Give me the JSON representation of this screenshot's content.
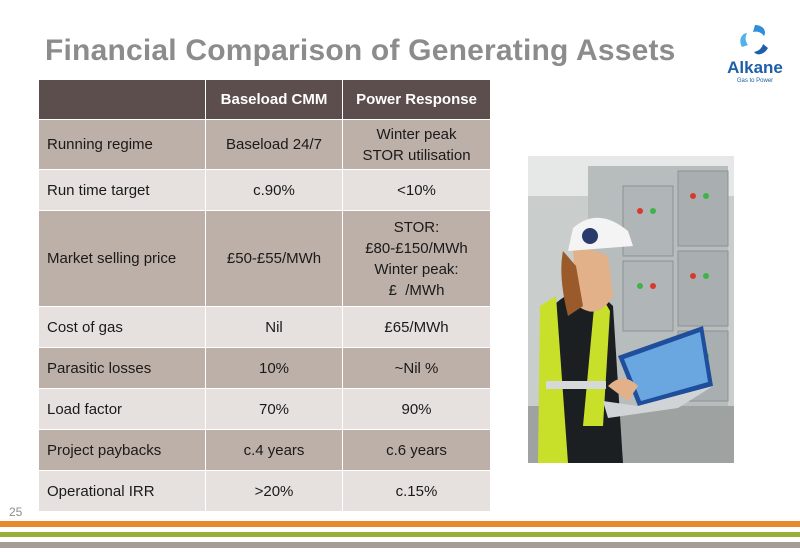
{
  "slide": {
    "title": "Financial Comparison of Generating Assets",
    "page_number": "25"
  },
  "logo": {
    "name": "Alkane",
    "tagline": "Gas to Power"
  },
  "table": {
    "headers": [
      "",
      "Baseload CMM",
      "Power Response"
    ],
    "rows": [
      {
        "label": "Running regime",
        "baseload": [
          "Baseload 24/7"
        ],
        "power": [
          "Winter peak",
          "STOR utilisation"
        ]
      },
      {
        "label": "Run time target",
        "baseload": [
          "c.90%"
        ],
        "power": [
          "<10%"
        ]
      },
      {
        "label": "Market selling price",
        "baseload": [
          "£50-£55/MWh"
        ],
        "power": [
          "STOR:",
          "£80-£150/MWh",
          "Winter peak:",
          "£  /MWh"
        ]
      },
      {
        "label": "Cost of gas",
        "baseload": [
          "Nil"
        ],
        "power": [
          "£65/MWh"
        ]
      },
      {
        "label": "Parasitic losses",
        "baseload": [
          "10%"
        ],
        "power": [
          "~Nil %"
        ]
      },
      {
        "label": "Load factor",
        "baseload": [
          "70%"
        ],
        "power": [
          "90%"
        ]
      },
      {
        "label": "Project paybacks",
        "baseload": [
          "c.4 years"
        ],
        "power": [
          "c.6 years"
        ]
      },
      {
        "label": "Operational IRR",
        "baseload": [
          ">20%"
        ],
        "power": [
          "c.15%"
        ]
      }
    ]
  },
  "colors": {
    "header_bg": "#5b4e4c",
    "row_dark": "#bdb0a8",
    "row_light": "#e6e1de",
    "title": "#8c8c8c",
    "stripe_orange": "#e8892f",
    "stripe_green": "#9aae3c",
    "stripe_grey": "#a59c94"
  },
  "photo": {
    "subject": "engineer-with-laptop-at-control-panel"
  }
}
